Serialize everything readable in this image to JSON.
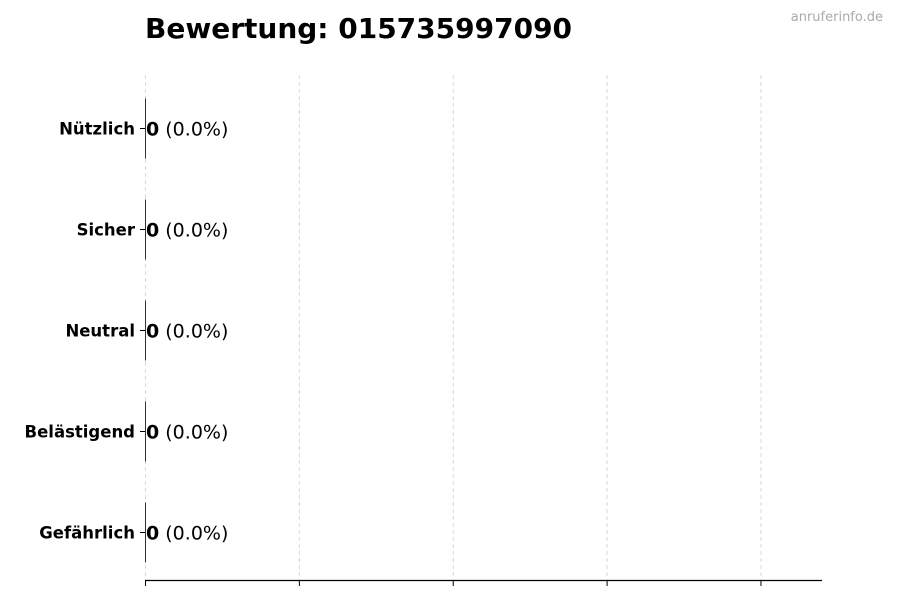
{
  "chart_data": {
    "type": "bar",
    "orientation": "horizontal",
    "title": "Bewertung: 015735997090",
    "watermark": "anruferinfo.de",
    "categories": [
      "Nützlich",
      "Sicher",
      "Neutral",
      "Belästigend",
      "Gefährlich"
    ],
    "values": [
      0,
      0,
      0,
      0,
      0
    ],
    "labels": [
      {
        "count": "0",
        "percent": "(0.0%)"
      },
      {
        "count": "0",
        "percent": "(0.0%)"
      },
      {
        "count": "0",
        "percent": "(0.0%)"
      },
      {
        "count": "0",
        "percent": "(0.0%)"
      },
      {
        "count": "0",
        "percent": "(0.0%)"
      }
    ],
    "xlabel": "",
    "ylabel": "",
    "xlim": [
      0,
      4.4
    ],
    "xticks": [
      0,
      1,
      2,
      3,
      4
    ],
    "xtick_labels_visible": false,
    "grid": "x-dashed",
    "colors": {
      "grid": "#d9d9d9",
      "axis": "#000000",
      "watermark": "#aaaaaa"
    }
  }
}
